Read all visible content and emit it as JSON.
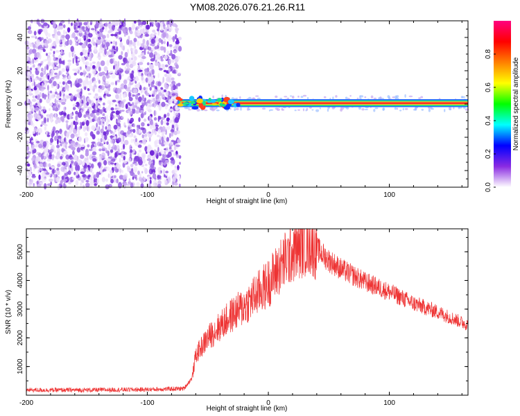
{
  "title": "YM08.2026.076.21.26.R11",
  "chart_data": [
    {
      "type": "heatmap",
      "xlabel": "Height of straight line (km)",
      "ylabel": "Frequency (Hz)",
      "xlim": [
        -200,
        165
      ],
      "ylim": [
        -50,
        50
      ],
      "xticks": [
        -200,
        -100,
        0,
        100
      ],
      "yticks": [
        -40,
        -20,
        0,
        20,
        40
      ],
      "xtick_labels": [
        "-200",
        "-100",
        "0",
        "100"
      ],
      "ytick_labels": [
        "-40",
        "-20",
        "0",
        "20",
        "40"
      ],
      "noise_region_x": [
        -200,
        -73
      ],
      "signal_band": {
        "x_start": -75,
        "x_end": 165,
        "frequency": 0.5,
        "halfwidth": 1.5
      },
      "colorbar": {
        "label": "Normalized spectral amplitude",
        "range": [
          0,
          1
        ],
        "ticks": [
          0.0,
          0.2,
          0.4,
          0.6,
          0.8
        ],
        "tick_labels": [
          "0.0",
          "0.2",
          "0.4",
          "0.6",
          "0.8"
        ],
        "colors": [
          "#ffffff",
          "#8a2be2",
          "#0000ff",
          "#00ffff",
          "#00ff00",
          "#ffff00",
          "#ff8000",
          "#ff0000",
          "#ff0080"
        ]
      }
    },
    {
      "type": "line",
      "xlabel": "Height of straight line (km)",
      "ylabel": "SNR (10 * v/v)",
      "xlim": [
        -200,
        165
      ],
      "ylim": [
        0,
        5800
      ],
      "xticks": [
        -200,
        -100,
        0,
        100
      ],
      "yticks": [
        1000,
        2000,
        3000,
        4000,
        5000
      ],
      "xtick_labels": [
        "-200",
        "-100",
        "0",
        "100"
      ],
      "ytick_labels": [
        "1000",
        "2000",
        "3000",
        "4000",
        "5000"
      ],
      "color": "#ee3333",
      "series": [
        {
          "name": "SNR",
          "envelope_x": [
            -200,
            -150,
            -100,
            -70,
            -63,
            -60,
            -55,
            -50,
            -40,
            -30,
            -20,
            -10,
            0,
            10,
            20,
            30,
            35,
            40,
            50,
            60,
            80,
            100,
            120,
            140,
            165
          ],
          "envelope_y": [
            180,
            180,
            200,
            230,
            600,
            1400,
            1700,
            2000,
            2400,
            2800,
            3100,
            3500,
            3900,
            4500,
            5000,
            5300,
            5350,
            5100,
            4700,
            4400,
            3950,
            3600,
            3200,
            2900,
            2450
          ]
        }
      ]
    }
  ]
}
